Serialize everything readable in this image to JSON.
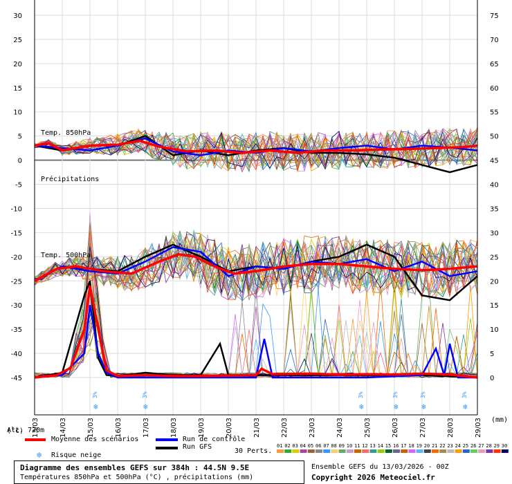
{
  "chart_data": {
    "type": "line",
    "left_axis": {
      "unit": "(°c)",
      "ticks": [
        30,
        25,
        20,
        15,
        10,
        5,
        0,
        -5,
        -10,
        -15,
        -20,
        -25,
        -30,
        -35,
        -40,
        -45
      ],
      "ylim": [
        -45,
        30
      ]
    },
    "right_axis": {
      "unit": "(mm)",
      "ticks": [
        75,
        70,
        65,
        60,
        55,
        50,
        45,
        40,
        35,
        30,
        25,
        20,
        15,
        10,
        5,
        0
      ],
      "ylim": [
        0,
        75
      ]
    },
    "x_ticks": [
      "13/03",
      "14/03",
      "15/03",
      "16/03",
      "17/03",
      "18/03",
      "19/03",
      "20/03",
      "21/03",
      "22/03",
      "23/03",
      "24/03",
      "25/03",
      "26/03",
      "27/03",
      "28/03",
      "29/03"
    ],
    "labels": {
      "t850": "Temp. 850hPa",
      "precip": "Précipitations",
      "t500": "Temp. 500hPa",
      "alt": "Alt. 720m"
    },
    "snow_risk_label": "3%",
    "snow_risk_days": [
      2.25,
      4.05,
      11.85,
      13.1,
      14.1,
      15.6
    ],
    "series": [
      {
        "name": "Moyenne des scénarios",
        "color": "#ff0000",
        "t850": [
          [
            0,
            3
          ],
          [
            0.5,
            3.5
          ],
          [
            1,
            2
          ],
          [
            2,
            3
          ],
          [
            3,
            3.2
          ],
          [
            3.8,
            4
          ],
          [
            4.5,
            2.8
          ],
          [
            5.5,
            1.8
          ],
          [
            6.5,
            2
          ],
          [
            7.5,
            1.5
          ],
          [
            8.5,
            2
          ],
          [
            9.5,
            1.5
          ],
          [
            10.5,
            2
          ],
          [
            11.5,
            2
          ],
          [
            12.5,
            2.2
          ],
          [
            13.5,
            2.3
          ],
          [
            14.5,
            2.5
          ],
          [
            15.5,
            2.7
          ],
          [
            16,
            3
          ]
        ],
        "t500": [
          [
            0,
            -25
          ],
          [
            0.8,
            -22.5
          ],
          [
            1.5,
            -22
          ],
          [
            2.5,
            -23
          ],
          [
            3.5,
            -23.5
          ],
          [
            4.5,
            -21
          ],
          [
            5.2,
            -19.5
          ],
          [
            5.8,
            -20
          ],
          [
            6.5,
            -22
          ],
          [
            7.2,
            -23.5
          ],
          [
            8,
            -23
          ],
          [
            9,
            -22
          ],
          [
            10,
            -21.5
          ],
          [
            11,
            -21.5
          ],
          [
            12,
            -22
          ],
          [
            13,
            -22.5
          ],
          [
            14,
            -22.8
          ],
          [
            15,
            -22.5
          ],
          [
            16,
            -22
          ]
        ],
        "precip": [
          [
            0,
            0
          ],
          [
            0.8,
            0.5
          ],
          [
            1.3,
            2
          ],
          [
            1.8,
            10
          ],
          [
            2,
            19
          ],
          [
            2.3,
            10
          ],
          [
            2.6,
            1.5
          ],
          [
            3,
            0.3
          ],
          [
            4,
            0.5
          ],
          [
            5,
            0.3
          ],
          [
            6,
            0.3
          ],
          [
            7,
            0.4
          ],
          [
            8,
            0.5
          ],
          [
            8.2,
            1.8
          ],
          [
            8.6,
            0.7
          ],
          [
            10,
            0.8
          ],
          [
            11,
            0.6
          ],
          [
            12,
            0.7
          ],
          [
            13,
            0.6
          ],
          [
            14,
            0.8
          ],
          [
            15,
            0.6
          ],
          [
            16,
            0
          ]
        ]
      },
      {
        "name": "Run de contrôle",
        "color": "#0000ff",
        "t850": [
          [
            0,
            3
          ],
          [
            1,
            2.5
          ],
          [
            2,
            2
          ],
          [
            3,
            3
          ],
          [
            4,
            4.5
          ],
          [
            5,
            1.8
          ],
          [
            6,
            1
          ],
          [
            7,
            2
          ],
          [
            8,
            1.5
          ],
          [
            9,
            2.5
          ],
          [
            10,
            1.8
          ],
          [
            11,
            2.5
          ],
          [
            12,
            3
          ],
          [
            13,
            2.2
          ],
          [
            14,
            3
          ],
          [
            15,
            2.6
          ],
          [
            16,
            2
          ]
        ],
        "t500": [
          [
            0,
            -25
          ],
          [
            1,
            -22
          ],
          [
            2,
            -23
          ],
          [
            3,
            -23.5
          ],
          [
            4,
            -21
          ],
          [
            5,
            -18
          ],
          [
            6,
            -19
          ],
          [
            7,
            -24
          ],
          [
            8,
            -22
          ],
          [
            9,
            -22.5
          ],
          [
            10,
            -21
          ],
          [
            11,
            -21.5
          ],
          [
            12,
            -20.5
          ],
          [
            13,
            -23
          ],
          [
            14,
            -21
          ],
          [
            15,
            -24
          ],
          [
            16,
            -23
          ]
        ],
        "precip": [
          [
            0,
            0
          ],
          [
            1,
            0.5
          ],
          [
            1.8,
            5
          ],
          [
            2,
            15
          ],
          [
            2.3,
            5
          ],
          [
            2.6,
            1
          ],
          [
            3,
            0
          ],
          [
            8,
            0
          ],
          [
            8.3,
            8
          ],
          [
            8.6,
            0
          ],
          [
            12,
            0
          ],
          [
            14,
            0.5
          ],
          [
            14.5,
            6
          ],
          [
            14.8,
            0.5
          ],
          [
            15,
            7
          ],
          [
            15.3,
            0
          ],
          [
            16,
            0
          ]
        ]
      },
      {
        "name": "Run GFS",
        "color": "#000000",
        "t850": [
          [
            0,
            3
          ],
          [
            1,
            2
          ],
          [
            2,
            3
          ],
          [
            3,
            3
          ],
          [
            4,
            5
          ],
          [
            5,
            1
          ],
          [
            6,
            2
          ],
          [
            7,
            1
          ],
          [
            8,
            2
          ],
          [
            9,
            2.5
          ],
          [
            10,
            1.5
          ],
          [
            11,
            1.5
          ],
          [
            12,
            1.2
          ],
          [
            13,
            0.5
          ],
          [
            14,
            -1
          ],
          [
            15,
            -2.5
          ],
          [
            16,
            -1
          ]
        ],
        "t500": [
          [
            0,
            -25
          ],
          [
            1,
            -22
          ],
          [
            2,
            -22.5
          ],
          [
            3,
            -23
          ],
          [
            4,
            -20
          ],
          [
            5,
            -17.5
          ],
          [
            6,
            -20
          ],
          [
            7,
            -23
          ],
          [
            8,
            -22
          ],
          [
            9,
            -22.5
          ],
          [
            10,
            -21
          ],
          [
            11,
            -20
          ],
          [
            12,
            -17.5
          ],
          [
            13,
            -20
          ],
          [
            14,
            -28
          ],
          [
            15,
            -29
          ],
          [
            16,
            -24
          ]
        ],
        "precip": [
          [
            0,
            0
          ],
          [
            1,
            1
          ],
          [
            1.8,
            17
          ],
          [
            2,
            20
          ],
          [
            2.3,
            4
          ],
          [
            2.6,
            0.5
          ],
          [
            3,
            0.3
          ],
          [
            4,
            1
          ],
          [
            5,
            0.5
          ],
          [
            6,
            0.5
          ],
          [
            6.7,
            7
          ],
          [
            7,
            0.5
          ],
          [
            8,
            0.5
          ],
          [
            10,
            0.5
          ],
          [
            12,
            0.5
          ],
          [
            14,
            0.5
          ],
          [
            16,
            0
          ]
        ]
      }
    ],
    "perturbations_label": "30 Perts.",
    "perturbation_ids": [
      "01",
      "02",
      "03",
      "04",
      "05",
      "06",
      "07",
      "08",
      "09",
      "10",
      "11",
      "12",
      "13",
      "14",
      "15",
      "16",
      "17",
      "18",
      "19",
      "20",
      "21",
      "22",
      "23",
      "24",
      "25",
      "26",
      "27",
      "28",
      "29",
      "30"
    ],
    "perturbation_colors": [
      "#ff9933",
      "#33aa33",
      "#ddcc00",
      "#aa44aa",
      "#996633",
      "#888888",
      "#3399ff",
      "#ffcc66",
      "#66aa66",
      "#cc99cc",
      "#cc6600",
      "#ff6666",
      "#339999",
      "#99cc00",
      "#006633",
      "#666699",
      "#bb6600",
      "#cc66ff",
      "#55bbee",
      "#444444",
      "#ff6600",
      "#aa8855",
      "#bbbbbb",
      "#ff9900",
      "#2266cc",
      "#66cc66",
      "#ee99bb",
      "#7733aa",
      "#ff3300",
      "#000066"
    ]
  },
  "legend": {
    "mean": "Moyenne des scénarios",
    "control": "Run de contrôle",
    "gfs": "Run GFS",
    "snow": "Risque neige",
    "perts": "30 Perts."
  },
  "footer": {
    "title": "Diagramme des ensembles GEFS sur 384h : 44.5N 9.5E",
    "subtitle": "Températures 850hPa et 500hPa (°C) , précipitations (mm)",
    "run": "Ensemble GEFS du 13/03/2026 - 00Z",
    "copyright": "Copyright 2026 Meteociel.fr"
  }
}
